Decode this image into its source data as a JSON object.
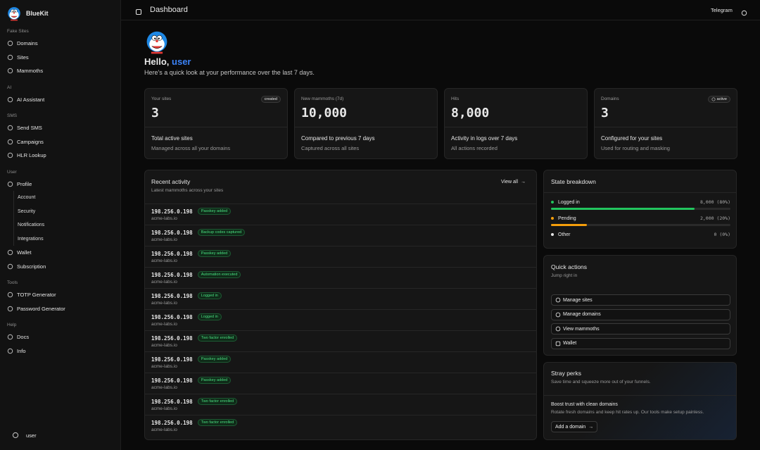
{
  "sidebar": {
    "brand": "BlueKit",
    "groups": [
      {
        "title": "Fake Sites",
        "items": [
          "Domains",
          "Sites",
          "Mammoths"
        ]
      },
      {
        "title": "AI",
        "items": [
          "AI Assistant"
        ]
      },
      {
        "title": "SMS",
        "items": [
          "Send SMS",
          "Campaigns",
          "HLR Lookup"
        ]
      },
      {
        "title": "User",
        "items": [
          "Profile"
        ],
        "subitems": [
          "Account",
          "Security",
          "Notifications",
          "Integrations"
        ],
        "items_after": [
          "Wallet",
          "Subscription"
        ]
      },
      {
        "title": "Tools",
        "items": [
          "TOTP Generator",
          "Password Generator"
        ]
      },
      {
        "title": "Help",
        "items": [
          "Docs",
          "Info"
        ]
      }
    ],
    "user": "user"
  },
  "header": {
    "title": "Dashboard",
    "link": "Telegram"
  },
  "greeting": {
    "hello": "Hello,",
    "name": "user",
    "subtitle": "Here's a quick look at your performance over the last 7 days."
  },
  "stats": [
    {
      "label": "Your sites",
      "badge": "created",
      "value": "3",
      "title": "Total active sites",
      "description": "Managed across all your domains"
    },
    {
      "label": "New mammoths (7d)",
      "value": "10,000",
      "title": "Compared to previous 7 days",
      "description": "Captured across all sites"
    },
    {
      "label": "Hits",
      "value": "8,000",
      "title": "Activity in logs over 7 days",
      "description": "All actions recorded"
    },
    {
      "label": "Domains",
      "badge": "active",
      "value": "3",
      "title": "Configured for your sites",
      "description": "Used for routing and masking"
    }
  ],
  "activity": {
    "title": "Recent activity",
    "subtitle": "Latest mammoths across your sites",
    "link": "View all",
    "rows": [
      {
        "ip": "198.256.0.198",
        "tag": "Passkey added",
        "domain": "acme-labs.io"
      },
      {
        "ip": "198.256.0.198",
        "tag": "Backup codes captured",
        "domain": "acme-labs.io"
      },
      {
        "ip": "198.256.0.198",
        "tag": "Passkey added",
        "domain": "acme-labs.io"
      },
      {
        "ip": "198.256.0.198",
        "tag": "Automation executed",
        "domain": "acme-labs.io"
      },
      {
        "ip": "198.256.0.198",
        "tag": "Logged in",
        "domain": "acme-labs.io"
      },
      {
        "ip": "198.256.0.198",
        "tag": "Logged in",
        "domain": "acme-labs.io"
      },
      {
        "ip": "198.256.0.198",
        "tag": "Two factor enrolled",
        "domain": "acme-labs.io"
      },
      {
        "ip": "198.256.0.198",
        "tag": "Passkey added",
        "domain": "acme-labs.io"
      },
      {
        "ip": "198.256.0.198",
        "tag": "Passkey added",
        "domain": "acme-labs.io"
      },
      {
        "ip": "198.256.0.198",
        "tag": "Two factor enrolled",
        "domain": "acme-labs.io"
      },
      {
        "ip": "198.256.0.198",
        "tag": "Two factor enrolled",
        "domain": "acme-labs.io"
      }
    ]
  },
  "state": {
    "title": "State breakdown",
    "items": [
      {
        "label": "Logged in",
        "value": "8,000 (80%)",
        "percent": 80,
        "color": "#22c55e"
      },
      {
        "label": "Pending",
        "value": "2,000 (20%)",
        "percent": 20,
        "color": "#f59e0b"
      },
      {
        "label": "Other",
        "value": "0 (0%)",
        "percent": 0,
        "color": "#e5e5e5"
      }
    ]
  },
  "quick_actions": {
    "title": "Quick actions",
    "subtitle": "Jump right in",
    "buttons": [
      "Manage sites",
      "Manage domains",
      "View mammoths",
      "Wallet"
    ]
  },
  "perks": {
    "title": "Stray perks",
    "subtitle": "Save time and squeeze more out of your funnels.",
    "heading": "Boost trust with clean domains",
    "text": "Rotate fresh domains and keep hit rates up. Our tools make setup painless.",
    "button": "Add a domain"
  }
}
